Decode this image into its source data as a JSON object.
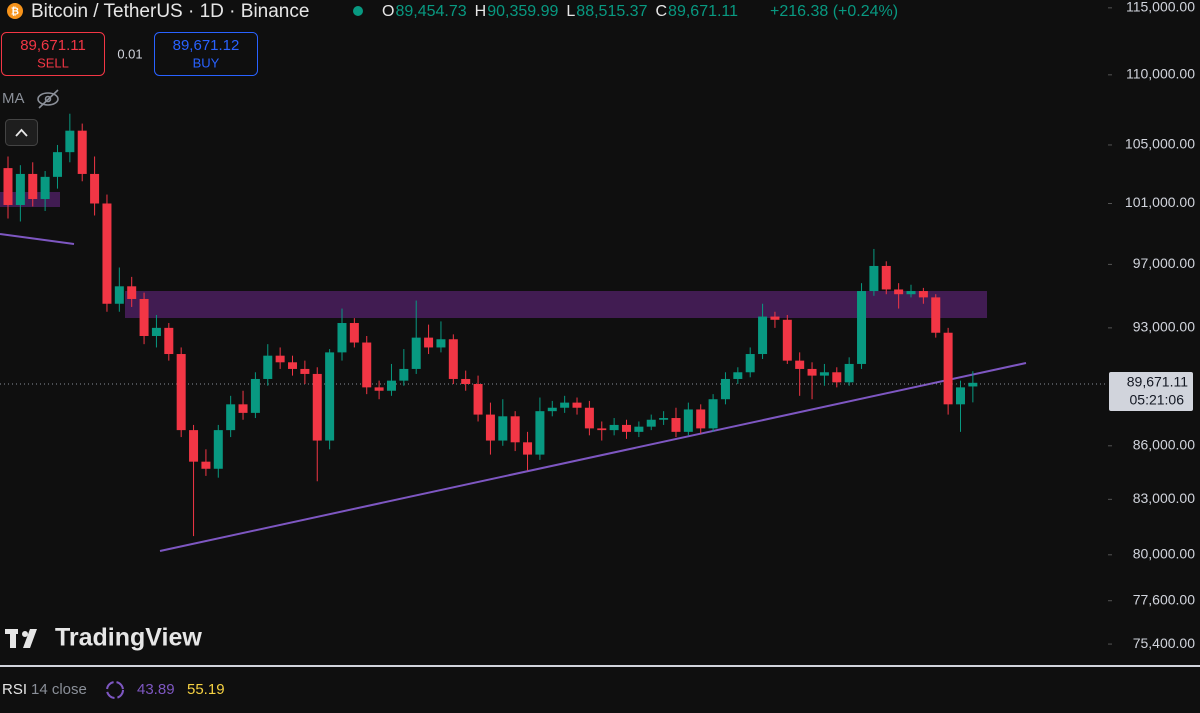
{
  "header": {
    "symbol": "Bitcoin / TetherUS · 1D · Binance",
    "ohlc": [
      {
        "key": "O",
        "value": "89,454.73"
      },
      {
        "key": "H",
        "value": "90,359.99"
      },
      {
        "key": "L",
        "value": "88,515.37"
      },
      {
        "key": "C",
        "value": "89,671.11"
      }
    ],
    "change": "+216.38 (+0.24%)"
  },
  "trade": {
    "sell_price": "89,671.11",
    "sell": "SELL",
    "size": "0.01",
    "buy_price": "89,671.12",
    "buy": "BUY"
  },
  "indicator": "MA",
  "price_tag": {
    "price": "89,671.11",
    "countdown": "05:21:06"
  },
  "brand": "TradingView",
  "rsi": {
    "name": "RSI",
    "params": "14 close",
    "value": "43.89",
    "ma": "55.19"
  },
  "chart_data": {
    "type": "candlestick",
    "log_scale": true,
    "up_color": "#089981",
    "down_color": "#f23645",
    "ylim": [
      74360,
      115600
    ],
    "yticks": [
      {
        "value": 115000,
        "label": "115,000.00"
      },
      {
        "value": 110000,
        "label": "110,000.00"
      },
      {
        "value": 105000,
        "label": "105,000.00"
      },
      {
        "value": 101000,
        "label": "101,000.00"
      },
      {
        "value": 97000,
        "label": "97,000.00"
      },
      {
        "value": 93000,
        "label": "93,000.00"
      },
      {
        "value": 86000,
        "label": "86,000.00"
      },
      {
        "value": 83000,
        "label": "83,000.00"
      },
      {
        "value": 80000,
        "label": "80,000.00"
      },
      {
        "value": 77600,
        "label": "77,600.00"
      },
      {
        "value": 75400,
        "label": "75,400.00"
      }
    ],
    "open": [
      103400,
      100900,
      103000,
      101300,
      102800,
      104500,
      106000,
      103000,
      101000,
      94500,
      95600,
      94800,
      92500,
      93000,
      91400,
      86900,
      85100,
      84700,
      86900,
      88400,
      87900,
      89900,
      91300,
      90900,
      90500,
      90200,
      86300,
      91500,
      93300,
      92100,
      89400,
      89200,
      89800,
      90500,
      92400,
      91800,
      92300,
      89900,
      89600,
      87800,
      86300,
      87700,
      86200,
      85500,
      88000,
      88200,
      88500,
      88200,
      87000,
      86900,
      87200,
      86800,
      87100,
      87500,
      87600,
      86800,
      88100,
      87000,
      88700,
      89900,
      90300,
      91400,
      93700,
      93500,
      91000,
      90500,
      90100,
      90300,
      89700,
      90800,
      95300,
      96900,
      95400,
      95100,
      95300,
      94900,
      92700,
      88400,
      89454.73
    ],
    "high": [
      104200,
      103600,
      103800,
      103200,
      105000,
      107200,
      106500,
      104200,
      101600,
      96800,
      96200,
      95200,
      93800,
      93300,
      91800,
      87200,
      85800,
      87200,
      88900,
      89200,
      90300,
      92000,
      91800,
      91300,
      91000,
      90600,
      91700,
      94200,
      93600,
      92500,
      89800,
      90800,
      91700,
      94700,
      93200,
      93400,
      92600,
      90400,
      90100,
      88500,
      88700,
      88000,
      86800,
      88800,
      88600,
      88900,
      88800,
      88600,
      87400,
      87600,
      87500,
      87400,
      87800,
      88000,
      88200,
      88500,
      88400,
      89000,
      90300,
      90600,
      91800,
      94500,
      94000,
      93800,
      91500,
      90900,
      90800,
      90600,
      91200,
      95800,
      98000,
      97200,
      95800,
      95700,
      95500,
      95100,
      93000,
      89800,
      90359.99
    ],
    "low": [
      100000,
      99800,
      100800,
      100500,
      102000,
      103800,
      102500,
      100200,
      94000,
      94000,
      94300,
      92000,
      91800,
      91000,
      86500,
      81000,
      84300,
      84200,
      86500,
      87500,
      87600,
      89500,
      90500,
      90100,
      89600,
      84000,
      85800,
      91000,
      91800,
      89000,
      88700,
      88900,
      89500,
      90200,
      91400,
      91500,
      89600,
      89200,
      87400,
      85500,
      86000,
      85700,
      84600,
      85200,
      87700,
      87900,
      87800,
      86600,
      86300,
      86600,
      86400,
      86500,
      86900,
      87200,
      86500,
      86600,
      86700,
      86800,
      88400,
      89600,
      90000,
      91100,
      93000,
      90800,
      88900,
      88700,
      89500,
      89400,
      89500,
      90500,
      95000,
      95100,
      94200,
      94900,
      94500,
      92400,
      87800,
      86800,
      88515.37
    ],
    "close": [
      100900,
      103000,
      101300,
      102800,
      104500,
      106000,
      103000,
      101000,
      94500,
      95600,
      94800,
      92500,
      93000,
      91400,
      86900,
      85100,
      84700,
      86900,
      88400,
      87900,
      89900,
      91300,
      90900,
      90500,
      90200,
      86300,
      91500,
      93300,
      92100,
      89400,
      89200,
      89800,
      90500,
      92400,
      91800,
      92300,
      89900,
      89600,
      87800,
      86300,
      87700,
      86200,
      85500,
      88000,
      88200,
      88500,
      88200,
      87000,
      86900,
      87200,
      86800,
      87100,
      87500,
      87600,
      86800,
      88100,
      87000,
      88700,
      89900,
      90300,
      91400,
      93700,
      93500,
      91000,
      90500,
      90100,
      90300,
      89700,
      90800,
      95300,
      96900,
      95400,
      95100,
      95300,
      94900,
      92700,
      88400,
      89400,
      89671.11
    ]
  }
}
